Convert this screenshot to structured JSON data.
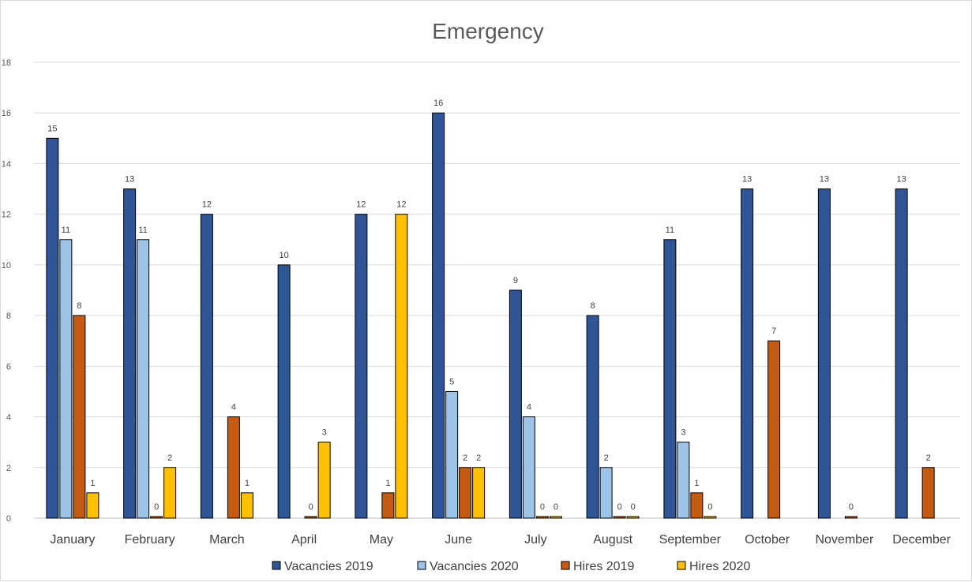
{
  "chart_data": {
    "type": "bar",
    "title": "Emergency",
    "xlabel": "",
    "ylabel": "",
    "ylim": [
      0,
      18
    ],
    "ytick_step": 2,
    "grid": true,
    "legend_position": "bottom",
    "categories": [
      "January",
      "February",
      "March",
      "April",
      "May",
      "June",
      "July",
      "August",
      "September",
      "October",
      "November",
      "December"
    ],
    "series": [
      {
        "name": "Vacancies 2019",
        "color": "#2f5597",
        "values": [
          15,
          13,
          12,
          10,
          12,
          16,
          9,
          8,
          11,
          13,
          13,
          13
        ]
      },
      {
        "name": "Vacancies 2020",
        "color": "#9dc3e6",
        "values": [
          11,
          11,
          null,
          null,
          null,
          5,
          4,
          2,
          3,
          null,
          null,
          null
        ]
      },
      {
        "name": "Hires 2019",
        "color": "#c55a11",
        "values": [
          8,
          0,
          4,
          0,
          1,
          2,
          0,
          0,
          1,
          7,
          0,
          2
        ]
      },
      {
        "name": "Hires 2020",
        "color": "#ffc000",
        "values": [
          1,
          2,
          1,
          3,
          12,
          2,
          0,
          0,
          0,
          null,
          null,
          null
        ]
      }
    ]
  }
}
